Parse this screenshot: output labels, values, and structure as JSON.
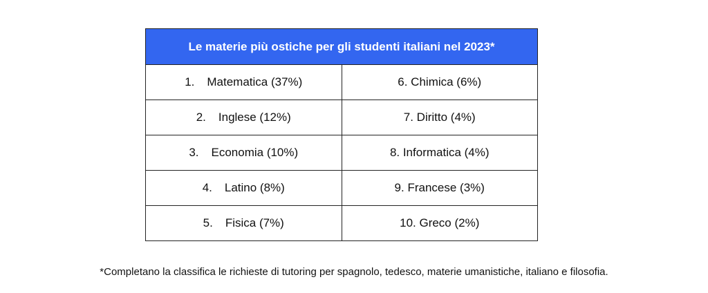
{
  "table": {
    "title": "Le materie più ostiche per gli studenti italiani nel 2023*",
    "rows": [
      {
        "left": {
          "num": "1.",
          "text": "Matematica (37%)"
        },
        "right": "6. Chimica (6%)"
      },
      {
        "left": {
          "num": "2.",
          "text": "Inglese (12%)"
        },
        "right": "7. Diritto (4%)"
      },
      {
        "left": {
          "num": "3.",
          "text": "Economia (10%)"
        },
        "right": "8. Informatica (4%)"
      },
      {
        "left": {
          "num": "4.",
          "text": "Latino (8%)"
        },
        "right": "9. Francese (3%)"
      },
      {
        "left": {
          "num": "5.",
          "text": "Fisica (7%)"
        },
        "right": "10. Greco (2%)"
      }
    ]
  },
  "footnote": "*Completano la classifica le richieste di tutoring per spagnolo, tedesco, materie umanistiche, italiano e filosofia."
}
